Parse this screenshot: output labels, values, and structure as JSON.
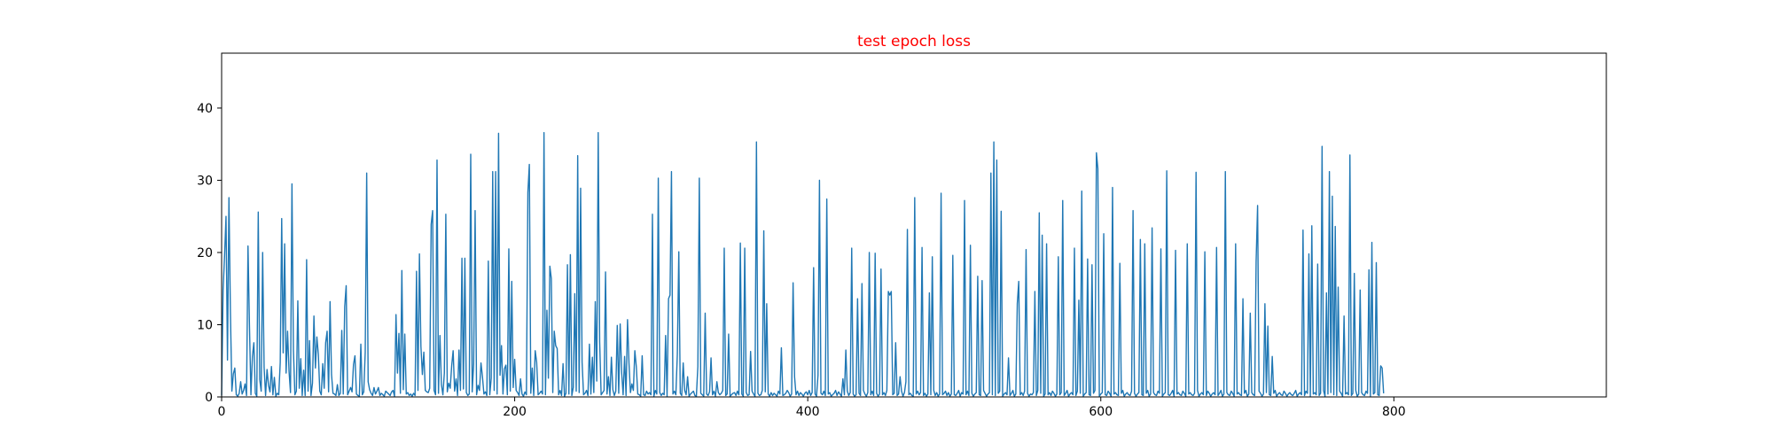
{
  "colors": {
    "background": "#ffffff",
    "axes": "#000000",
    "line": "#1f77b4",
    "title": "#ff0000"
  },
  "chart_data": {
    "type": "line",
    "title": "test epoch loss",
    "xlabel": "",
    "ylabel": "",
    "xlim": [
      0,
      945
    ],
    "ylim": [
      0,
      47.6
    ],
    "grid": false,
    "legend": "none",
    "x_ticks": [
      0,
      200,
      400,
      600,
      800
    ],
    "y_ticks": [
      0,
      10,
      20,
      30,
      40
    ],
    "series": [
      {
        "x_start": 0,
        "x_step": 1,
        "values": [
          0.2,
          14.8,
          19.5,
          25,
          5.1,
          27.6,
          11.7,
          0.8,
          3.2,
          4,
          0.3,
          0.1,
          0.5,
          2.1,
          0.4,
          0.9,
          1.8,
          0.2,
          20.9,
          9.8,
          0.3,
          5.6,
          7.5,
          0.5,
          0.1,
          25.6,
          2.4,
          0.8,
          20,
          4.1,
          0.2,
          3.8,
          1.6,
          0.7,
          4.2,
          0.3,
          2.7,
          0.1,
          0.5,
          0.3,
          4.8,
          24.7,
          6.1,
          21.2,
          3.3,
          9.1,
          3.6,
          0.6,
          29.5,
          6.5,
          0.3,
          0.8,
          13.3,
          1.2,
          5.3,
          0.2,
          3.7,
          0.2,
          19,
          0.8,
          7.8,
          0.2,
          1.9,
          11.2,
          4,
          8.3,
          5.9,
          0.8,
          0.3,
          4.6,
          1.2,
          7.5,
          9.1,
          0.7,
          13.2,
          3.1,
          0.5,
          0.4,
          0.2,
          1.7,
          0.2,
          0.5,
          9.2,
          0.4,
          12.5,
          15.4,
          0.3,
          0.8,
          1.3,
          0.7,
          4.5,
          5.7,
          0.4,
          0.2,
          0.1,
          7.3,
          0.3,
          0.7,
          6.2,
          31,
          2.1,
          1,
          0.5,
          0.2,
          1.3,
          0.4,
          0.8,
          1.3,
          0.2,
          0.5,
          0.3,
          0.1,
          0.8,
          0.6,
          0.4,
          0.2,
          0.7,
          0.9,
          0.1,
          11.4,
          3.3,
          8.8,
          0.5,
          17.5,
          1,
          8.7,
          0.4,
          0.6,
          0.2,
          0.4,
          0.1,
          0.5,
          0.2,
          17.4,
          0.9,
          19.8,
          7,
          3.1,
          6.2,
          0.9,
          0.7,
          0.6,
          1.2,
          23.9,
          25.8,
          0.9,
          0.3,
          32.8,
          0.5,
          8.5,
          1.7,
          0.3,
          3.3,
          25.3,
          0.7,
          1.9,
          1.2,
          4.3,
          6.4,
          0.8,
          2.5,
          0.2,
          6.5,
          0.9,
          19.2,
          1.1,
          19.2,
          0.6,
          0.2,
          0.4,
          33.6,
          0.7,
          4.6,
          25.8,
          0.3,
          1.6,
          0.9,
          4.7,
          2.8,
          0.4,
          0.7,
          0.2,
          18.8,
          0.3,
          2.6,
          31.2,
          0.9,
          31.2,
          0.4,
          36.5,
          3,
          7.1,
          0.4,
          3.9,
          4.4,
          0.3,
          20.5,
          0.8,
          16,
          1.3,
          5.2,
          0.9,
          0.6,
          0.2,
          2.5,
          0.4,
          0.1,
          0.7,
          0.3,
          28.3,
          32.2,
          0.5,
          4,
          0.2,
          6.4,
          4.8,
          0.3,
          0.5,
          0.8,
          0.4,
          36.6,
          0.3,
          12,
          2.6,
          18.1,
          16.4,
          0.6,
          9.1,
          7.1,
          6.7,
          0.3,
          0.9,
          0.2,
          4.6,
          0.1,
          0.5,
          18.3,
          0.4,
          19.7,
          0.2,
          1.3,
          14.3,
          0.8,
          33.4,
          0.6,
          28.9,
          4.8,
          0.3,
          0.5,
          0.9,
          0.2,
          7.3,
          0.4,
          5.5,
          0.6,
          13.2,
          2.2,
          36.6,
          7.6,
          0.3,
          0.6,
          0.9,
          17.3,
          0.4,
          2.8,
          0.2,
          5.5,
          1,
          0.2,
          0.8,
          9.9,
          0.5,
          10.1,
          3.4,
          0.3,
          5.6,
          0.2,
          10.7,
          4.7,
          0.6,
          1.8,
          0.9,
          6.4,
          4.2,
          0.4,
          0.3,
          0.1,
          5.7,
          0.3,
          0.2,
          0.8,
          0.4,
          0.6,
          0.3,
          25.3,
          0.1,
          0.9,
          0.4,
          30.3,
          0.6,
          0.2,
          0.5,
          0.3,
          8.5,
          0.1,
          13.6,
          14.1,
          31.2,
          0.4,
          0.8,
          0.3,
          5.9,
          20.1,
          0.5,
          0.2,
          4.7,
          0.9,
          0.3,
          2.8,
          0.1,
          0.4,
          0.6,
          0.8,
          0.2,
          0.1,
          4.2,
          30.3,
          0.5,
          0.3,
          0.1,
          11.6,
          0.4,
          0.2,
          0.7,
          5.4,
          0.3,
          0.8,
          0.1,
          2.1,
          0.6,
          0.3,
          0.5,
          0.9,
          20.6,
          0.2,
          0.4,
          8.7,
          0.1,
          0.3,
          0.5,
          0.6,
          0.2,
          0.8,
          0.3,
          21.3,
          0.4,
          0.1,
          20.6,
          0.6,
          0.2,
          0.3,
          6.3,
          0.8,
          0.4,
          0.1,
          35.3,
          0.5,
          0.2,
          0.3,
          0.9,
          23,
          0.7,
          12.9,
          0.4,
          0.1,
          0.6,
          0.2,
          0.5,
          0.3,
          0.1,
          0.8,
          0.4,
          6.8,
          0.2,
          0.3,
          0.5,
          0.9,
          0.6,
          0.1,
          0.4,
          15.8,
          2.8,
          0.3,
          0.8,
          0.2,
          0.6,
          0.4,
          0.1,
          0.5,
          0.7,
          0.3,
          0.9,
          0.2,
          0.6,
          17.9,
          0.4,
          0.1,
          3,
          30,
          0.5,
          0.3,
          0.8,
          0.2,
          27.4,
          0.4,
          0.6,
          0.1,
          0.3,
          0.5,
          0.9,
          0.2,
          0.7,
          0.4,
          0.1,
          2.5,
          0.3,
          6.5,
          0.8,
          0.2,
          0.6,
          20.6,
          0.4,
          0.1,
          0.3,
          13.6,
          0.5,
          0.2,
          15.7,
          0.9,
          0.4,
          0.1,
          0.6,
          20,
          0.3,
          0.8,
          0.2,
          19.9,
          0.5,
          0.1,
          0.4,
          17.7,
          0.3,
          0.6,
          0.2,
          0.9,
          14.6,
          14.1,
          14.6,
          0.3,
          0.5,
          7.5,
          0.2,
          0.4,
          2.8,
          0.8,
          0.1,
          0.6,
          2.1,
          23.2,
          0.3,
          0.5,
          0.2,
          0.1,
          27.6,
          0.4,
          0.8,
          0.3,
          0.6,
          20.7,
          0.2,
          0.5,
          0.1,
          0.4,
          14.4,
          0.3,
          19.4,
          0.9,
          0.2,
          0.6,
          0.1,
          0.4,
          28.2,
          0.3,
          0.5,
          0.8,
          0.2,
          0.6,
          0.1,
          0.4,
          19.6,
          0.3,
          0.2,
          0.5,
          0.9,
          0.1,
          0.6,
          0.4,
          27.2,
          0.3,
          0.8,
          0.2,
          21,
          0.5,
          0.1,
          0.4,
          0.6,
          16.7,
          0.3,
          0.2,
          16.1,
          0.9,
          0.5,
          0.1,
          0.4,
          0.6,
          31,
          0.3,
          35.3,
          0.2,
          32.8,
          0.5,
          0.8,
          25.7,
          0.1,
          0.4,
          0.6,
          0.3,
          5.4,
          0.2,
          0.5,
          0.9,
          0.1,
          0.4,
          12.9,
          16,
          0.3,
          0.6,
          0.2,
          0.8,
          20.4,
          0.5,
          0.1,
          0.4,
          0.3,
          0.6,
          14.6,
          0.2,
          0.9,
          25.5,
          0.5,
          22.4,
          0.1,
          0.4,
          21.2,
          0.3,
          0.6,
          0.2,
          0.8,
          0.5,
          0.1,
          0.4,
          19.4,
          0.3,
          0.6,
          27.2,
          0.2,
          0.5,
          0.9,
          0.1,
          0.4,
          0.6,
          0.3,
          20.6,
          0.2,
          0.8,
          13.4,
          0.5,
          28.5,
          0.1,
          0.4,
          0.6,
          19.1,
          0.3,
          0.2,
          18.3,
          0.5,
          0.9,
          33.8,
          31.6,
          0.1,
          0.4,
          0.6,
          22.6,
          0.3,
          0.2,
          0.8,
          0.5,
          0.1,
          29,
          0.4,
          0.6,
          0.3,
          0.2,
          18.5,
          0.5,
          0.9,
          0.1,
          0.4,
          0.6,
          0.3,
          0.2,
          0.8,
          25.8,
          0.5,
          0.1,
          0.4,
          0.6,
          21.8,
          0.3,
          0.2,
          21.2,
          0.5,
          0.9,
          0.1,
          0.4,
          23.4,
          0.6,
          0.3,
          0.2,
          0.8,
          0.5,
          20.5,
          0.1,
          0.4,
          0.6,
          31.3,
          0.3,
          0.2,
          0.5,
          0.9,
          0.1,
          20.3,
          0.4,
          0.6,
          0.3,
          0.2,
          0.8,
          0.5,
          0.1,
          21.2,
          0.4,
          0.6,
          0.3,
          0.2,
          0.5,
          31.1,
          0.9,
          0.1,
          0.4,
          0.6,
          0.3,
          20.1,
          0.2,
          0.8,
          0.5,
          0.1,
          0.4,
          0.6,
          0.3,
          20.7,
          0.2,
          0.5,
          0.9,
          0.1,
          0.4,
          31.2,
          0.6,
          0.3,
          0.2,
          0.8,
          0.5,
          0.1,
          21.2,
          0.4,
          0.6,
          0.3,
          0.2,
          13.6,
          0.5,
          0.9,
          0.1,
          0.4,
          11.6,
          0.6,
          0.3,
          0.2,
          18.8,
          26.5,
          0.8,
          0.5,
          0.1,
          0.4,
          12.9,
          0.6,
          9.8,
          0.3,
          0.2,
          5.6,
          0.5,
          0.9,
          0.1,
          0.4,
          0.6,
          0.3,
          0.2,
          0.8,
          0.5,
          0.1,
          0.4,
          0.6,
          0.3,
          0.2,
          0.5,
          0.9,
          0.1,
          0.4,
          0.6,
          0.3,
          23.1,
          0.2,
          0.8,
          0.5,
          19.8,
          0.1,
          23.7,
          0.4,
          0.6,
          0.3,
          18.4,
          0.2,
          0.5,
          34.7,
          0.9,
          0.1,
          14.4,
          0.4,
          31.2,
          0.6,
          27.8,
          0.3,
          23.6,
          0.2,
          15.2,
          0.8,
          0.5,
          0.1,
          11.2,
          0.4,
          0.6,
          0.3,
          33.5,
          0.2,
          0.5,
          17.1,
          0.9,
          0.1,
          0.4,
          14.8,
          0.6,
          0.3,
          0.2,
          0.8,
          0.5,
          17.6,
          0.1,
          21.4,
          0.4,
          0.6,
          18.6,
          0.3,
          0.2,
          4.3,
          4,
          0.5
        ]
      }
    ]
  }
}
